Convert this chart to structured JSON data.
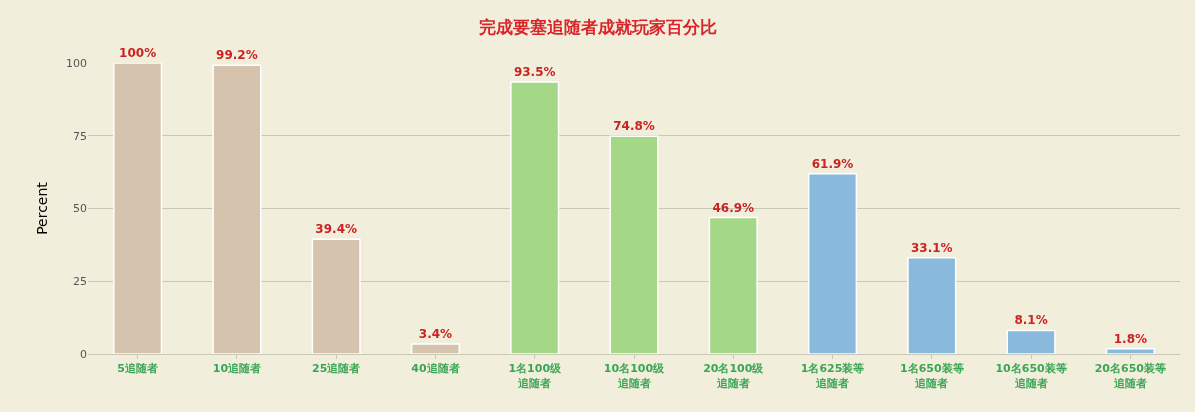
{
  "chart_data": {
    "type": "bar",
    "title": "完成要塞追随者成就玩家百分比",
    "ylabel": "Percent",
    "categories": [
      "5追随者",
      "10追随者",
      "25追随者",
      "40追随者",
      "1名100级追随者",
      "10名100级追随者",
      "20名100级追随者",
      "1名625装等追随者",
      "1名650装等追随者",
      "10名650装等追随者",
      "20名650装等追随者"
    ],
    "values": [
      100,
      99.2,
      39.4,
      3.4,
      93.5,
      74.8,
      46.9,
      61.9,
      33.1,
      8.1,
      1.8
    ],
    "value_labels": [
      "100%",
      "99.2%",
      "39.4%",
      "3.4%",
      "93.5%",
      "74.8%",
      "46.9%",
      "61.9%",
      "33.1%",
      "8.1%",
      "1.8%"
    ],
    "colors": [
      "#d5c3ae",
      "#d5c3ae",
      "#d5c3ae",
      "#d5c3ae",
      "#a4d886",
      "#a4d886",
      "#a4d886",
      "#89b9dc",
      "#89b9dc",
      "#89b9dc",
      "#89b9dc"
    ],
    "ylim": [
      0,
      100
    ],
    "yticks": [
      0,
      25,
      50,
      75,
      100
    ],
    "grid": "y"
  }
}
